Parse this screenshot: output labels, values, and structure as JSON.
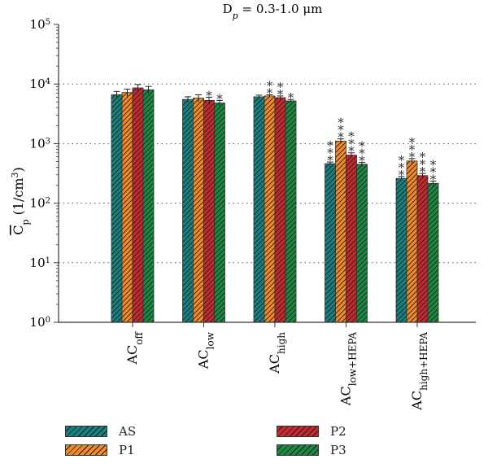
{
  "chart_data": {
    "type": "bar",
    "title": "Dp = 0.3-1.0 μm",
    "title_parts": {
      "main": "D",
      "sub": "p",
      "rest": " = 0.3-1.0 μm"
    },
    "ylabel": "Cp (1/cm³)",
    "ylabel_parts": {
      "main": "C",
      "sub": "p",
      "rest": " (1/cm",
      "sup": "3",
      "end": ")"
    },
    "yscale": "log",
    "ylim": [
      1,
      100000
    ],
    "yticks": [
      {
        "base": "10",
        "exp": "0"
      },
      {
        "base": "10",
        "exp": "1"
      },
      {
        "base": "10",
        "exp": "2"
      },
      {
        "base": "10",
        "exp": "3"
      },
      {
        "base": "10",
        "exp": "4"
      },
      {
        "base": "10",
        "exp": "5"
      }
    ],
    "grid": "horizontal dotted",
    "legend_position": "bottom",
    "categories": [
      {
        "main": "AC",
        "sub": "off"
      },
      {
        "main": "AC",
        "sub": "low"
      },
      {
        "main": "AC",
        "sub": "high"
      },
      {
        "main": "AC",
        "sub": "low+HEPA"
      },
      {
        "main": "AC",
        "sub": "high+HEPA"
      }
    ],
    "series": [
      {
        "name": "AS",
        "color": "#1a8080",
        "values": [
          6600,
          5500,
          6100,
          460,
          260
        ],
        "errors": [
          900,
          600,
          400,
          30,
          20
        ],
        "marks": [
          "",
          "",
          "",
          "***",
          "***"
        ]
      },
      {
        "name": "P1",
        "color": "#f28a27",
        "values": [
          7200,
          5800,
          6300,
          1100,
          510
        ],
        "errors": [
          1000,
          800,
          300,
          100,
          50
        ],
        "marks": [
          "",
          "",
          "**",
          "***",
          "***"
        ]
      },
      {
        "name": "P2",
        "color": "#c62a2e",
        "values": [
          8600,
          5300,
          5900,
          640,
          290
        ],
        "errors": [
          1200,
          700,
          400,
          60,
          25
        ],
        "marks": [
          "",
          "*",
          "**",
          "***",
          "***"
        ]
      },
      {
        "name": "P3",
        "color": "#1b8a42",
        "values": [
          8000,
          4800,
          5200,
          450,
          215
        ],
        "errors": [
          1100,
          500,
          300,
          35,
          20
        ],
        "marks": [
          "",
          "*",
          "*",
          "***",
          "***"
        ]
      }
    ]
  }
}
